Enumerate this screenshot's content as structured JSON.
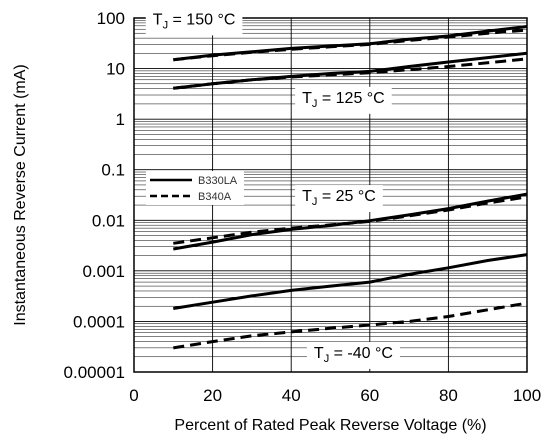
{
  "chart_data": {
    "type": "line",
    "xlabel": "Percent of Rated Peak Reverse Voltage (%)",
    "ylabel": "Instantaneous Reverse Current (mA)",
    "xlim": [
      0,
      100
    ],
    "ylim": [
      1e-05,
      100
    ],
    "yscale": "log",
    "grid": true,
    "x_ticks": [
      "0",
      "20",
      "40",
      "60",
      "80",
      "100"
    ],
    "y_ticks": [
      "0.00001",
      "0.0001",
      "0.001",
      "0.01",
      "0.1",
      "1",
      "10",
      "100"
    ],
    "legend": {
      "placement": "left-middle",
      "entries": [
        {
          "label": "B330LA",
          "style": "solid"
        },
        {
          "label": "B340A",
          "style": "dashed"
        }
      ]
    },
    "annotations": [
      {
        "main": "T",
        "sub": "J",
        "rest": " = 150 °C",
        "x": 3,
        "y": 75
      },
      {
        "main": "T",
        "sub": "J",
        "rest": " = 125 °C",
        "x": 41,
        "y": 2.1
      },
      {
        "main": "T",
        "sub": "J",
        "rest": " = 25 °C",
        "x": 41,
        "y": 0.024
      },
      {
        "main": "T",
        "sub": "J",
        "rest": " = -40 °C",
        "x": 44,
        "y": 1.9e-05
      }
    ],
    "series": [
      {
        "group": "TJ = 150 °C",
        "device": "B330LA",
        "style": "solid",
        "x": [
          10,
          20,
          30,
          40,
          50,
          60,
          70,
          80,
          90,
          100
        ],
        "y": [
          15,
          18.5,
          21.5,
          25,
          28,
          31,
          38,
          44,
          55,
          68
        ]
      },
      {
        "group": "TJ = 150 °C",
        "device": "B340A",
        "style": "dashed",
        "x": [
          10,
          20,
          30,
          40,
          50,
          60,
          70,
          80,
          90,
          100
        ],
        "y": [
          15,
          18,
          21,
          24,
          27,
          30,
          36,
          42,
          50,
          58
        ]
      },
      {
        "group": "TJ = 125 °C",
        "device": "B330LA",
        "style": "solid",
        "x": [
          10,
          20,
          30,
          40,
          50,
          60,
          70,
          80,
          90,
          100
        ],
        "y": [
          4.1,
          5,
          6,
          7,
          8,
          8.8,
          11,
          13.5,
          16.5,
          20
        ]
      },
      {
        "group": "TJ = 125 °C",
        "device": "B340A",
        "style": "dashed",
        "x": [
          10,
          20,
          30,
          40,
          50,
          60,
          70,
          80,
          90,
          100
        ],
        "y": [
          4.1,
          5,
          6,
          6.8,
          7.5,
          8.3,
          9.5,
          11,
          13,
          15.5
        ]
      },
      {
        "group": "TJ = 25 °C",
        "device": "B330LA",
        "style": "solid",
        "x": [
          10,
          20,
          30,
          40,
          50,
          60,
          70,
          80,
          90,
          100
        ],
        "y": [
          0.0027,
          0.0037,
          0.0052,
          0.0066,
          0.0079,
          0.0098,
          0.0128,
          0.017,
          0.024,
          0.033
        ]
      },
      {
        "group": "TJ = 25 °C",
        "device": "B340A",
        "style": "dashed",
        "x": [
          10,
          20,
          30,
          40,
          50,
          60,
          70,
          80,
          90,
          100
        ],
        "y": [
          0.0035,
          0.0045,
          0.0058,
          0.007,
          0.0081,
          0.0095,
          0.0122,
          0.016,
          0.022,
          0.029
        ]
      },
      {
        "group": "TJ = -40 °C",
        "device": "B330LA",
        "style": "solid",
        "x": [
          10,
          20,
          30,
          40,
          50,
          60,
          70,
          80,
          90,
          100
        ],
        "y": [
          0.00018,
          0.00024,
          0.00032,
          0.00041,
          0.0005,
          0.0006,
          0.00085,
          0.00115,
          0.0016,
          0.0021
        ]
      },
      {
        "group": "TJ = -40 °C",
        "device": "B340A",
        "style": "dashed",
        "x": [
          10,
          20,
          30,
          40,
          50,
          60,
          70,
          80,
          90,
          100
        ],
        "y": [
          3e-05,
          4e-05,
          5.2e-05,
          6.2e-05,
          7.3e-05,
          8.5e-05,
          0.0001,
          0.000125,
          0.00017,
          0.00023
        ]
      }
    ]
  }
}
